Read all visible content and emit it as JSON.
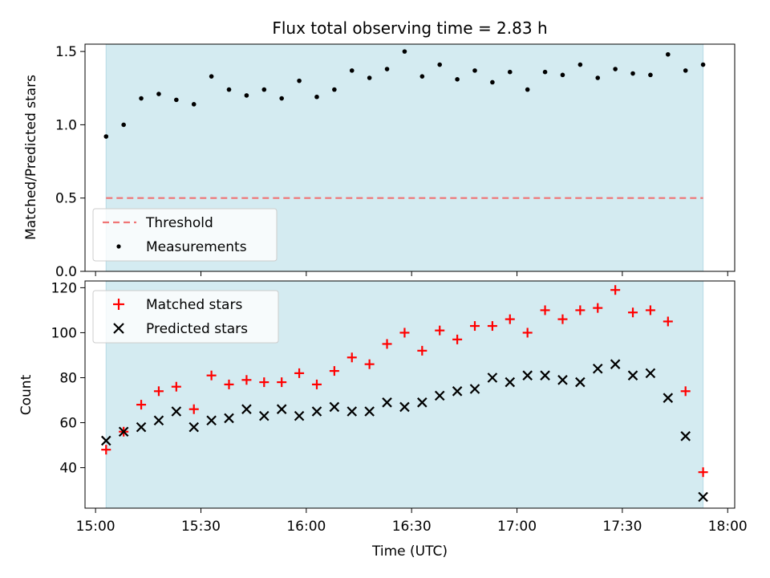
{
  "chart_data": {
    "type": "scatter",
    "title": "Flux total observing time = 2.83 h",
    "xlabel": "Time (UTC)",
    "x_ticks": [
      "15:00",
      "15:30",
      "16:00",
      "16:30",
      "17:00",
      "17:30",
      "18:00"
    ],
    "xlim": [
      "14:57",
      "18:02"
    ],
    "shaded_span": [
      "15:03",
      "17:53"
    ],
    "colors": {
      "span": "#d4ebf1",
      "threshold": "#f07575",
      "measurements": "#000000",
      "matched": "#ff0000",
      "predicted": "#000000"
    },
    "x": [
      "15:03",
      "15:08",
      "15:13",
      "15:18",
      "15:23",
      "15:28",
      "15:33",
      "15:38",
      "15:43",
      "15:48",
      "15:53",
      "15:58",
      "16:03",
      "16:08",
      "16:13",
      "16:18",
      "16:23",
      "16:28",
      "16:33",
      "16:38",
      "16:43",
      "16:48",
      "16:53",
      "16:58",
      "17:03",
      "17:08",
      "17:13",
      "17:18",
      "17:23",
      "17:28",
      "17:33",
      "17:38",
      "17:43",
      "17:48",
      "17:53"
    ],
    "panels": [
      {
        "ylabel": "Matched/Predicted stars",
        "ylim": [
          0,
          1.55
        ],
        "y_ticks": [
          "0.0",
          "0.5",
          "1.0",
          "1.5"
        ],
        "threshold": {
          "name": "Threshold",
          "value": 0.5
        },
        "legend_position": "lower-left",
        "series": [
          {
            "name": "Measurements",
            "marker": "dot",
            "values": [
              0.92,
              1.0,
              1.18,
              1.21,
              1.17,
              1.14,
              1.33,
              1.24,
              1.2,
              1.24,
              1.18,
              1.3,
              1.19,
              1.24,
              1.37,
              1.32,
              1.38,
              1.5,
              1.33,
              1.41,
              1.31,
              1.37,
              1.29,
              1.36,
              1.24,
              1.36,
              1.34,
              1.41,
              1.32,
              1.38,
              1.35,
              1.34,
              1.48,
              1.37,
              1.41
            ]
          }
        ]
      },
      {
        "ylabel": "Count",
        "ylim": [
          22,
          123
        ],
        "y_ticks": [
          "40",
          "60",
          "80",
          "100",
          "120"
        ],
        "legend_position": "upper-left",
        "series": [
          {
            "name": "Matched stars",
            "marker": "plus",
            "values": [
              48,
              56,
              68,
              74,
              76,
              66,
              81,
              77,
              79,
              78,
              78,
              82,
              77,
              83,
              89,
              86,
              95,
              100,
              92,
              101,
              97,
              103,
              103,
              106,
              100,
              110,
              106,
              110,
              111,
              119,
              109,
              110,
              105,
              74,
              38
            ]
          },
          {
            "name": "Predicted stars",
            "marker": "x",
            "values": [
              52,
              56,
              58,
              61,
              65,
              58,
              61,
              62,
              66,
              63,
              66,
              63,
              65,
              67,
              65,
              65,
              69,
              67,
              69,
              72,
              74,
              75,
              80,
              78,
              81,
              81,
              79,
              78,
              84,
              86,
              81,
              82,
              71,
              54,
              27
            ]
          }
        ]
      }
    ]
  }
}
